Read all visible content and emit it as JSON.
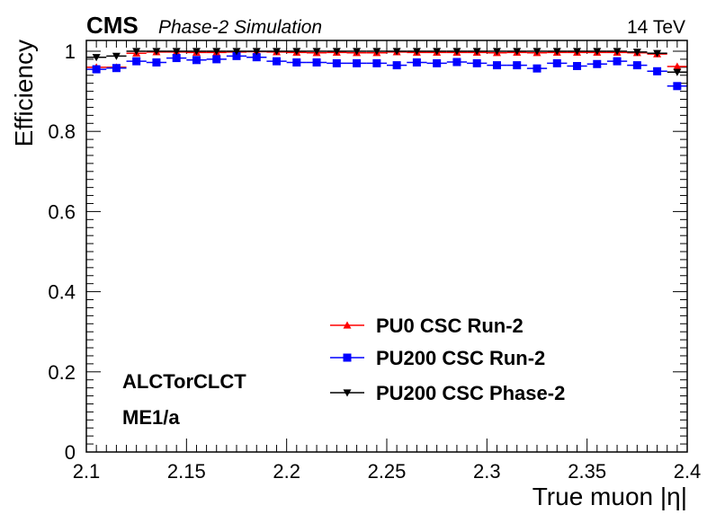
{
  "header": {
    "experiment": "CMS",
    "subtitle": "Phase-2 Simulation",
    "energy": "14 TeV"
  },
  "chart_data": {
    "type": "scatter",
    "xlabel": "True muon |η|",
    "ylabel": "Efficiency",
    "xlim": [
      2.1,
      2.4
    ],
    "ylim": [
      0,
      1.02
    ],
    "xticks": [
      2.1,
      2.15,
      2.2,
      2.25,
      2.3,
      2.35,
      2.4
    ],
    "xtick_labels": [
      "2.1",
      "2.15",
      "2.2",
      "2.25",
      "2.3",
      "2.35",
      "2.4"
    ],
    "yticks": [
      0,
      0.2,
      0.4,
      0.6,
      0.8,
      1
    ],
    "ytick_labels": [
      "0",
      "0.2",
      "0.4",
      "0.6",
      "0.8",
      "1"
    ],
    "bin_width": 0.01,
    "grid": false,
    "legend_position": "bottom-center",
    "annotations": [
      "ALCTorCLCT",
      "ME1/a"
    ],
    "series": [
      {
        "name": "PU0 CSC Run-2",
        "color": "#ff0000",
        "marker": "triangle-up",
        "x": [
          2.105,
          2.115,
          2.125,
          2.135,
          2.145,
          2.155,
          2.165,
          2.175,
          2.185,
          2.195,
          2.205,
          2.215,
          2.225,
          2.235,
          2.245,
          2.255,
          2.265,
          2.275,
          2.285,
          2.295,
          2.305,
          2.315,
          2.325,
          2.335,
          2.345,
          2.355,
          2.365,
          2.375,
          2.385,
          2.395
        ],
        "values": [
          0.96,
          0.96,
          0.995,
          0.998,
          0.998,
          0.997,
          0.997,
          0.998,
          0.999,
          0.998,
          0.997,
          0.996,
          0.997,
          0.996,
          0.996,
          0.998,
          0.997,
          0.997,
          0.997,
          0.997,
          0.996,
          0.997,
          0.996,
          0.997,
          0.997,
          0.997,
          0.997,
          0.996,
          0.993,
          0.962
        ]
      },
      {
        "name": "PU200 CSC Run-2",
        "color": "#0000ff",
        "marker": "square",
        "x": [
          2.105,
          2.115,
          2.125,
          2.135,
          2.145,
          2.155,
          2.165,
          2.175,
          2.185,
          2.195,
          2.205,
          2.215,
          2.225,
          2.235,
          2.245,
          2.255,
          2.265,
          2.275,
          2.285,
          2.295,
          2.305,
          2.315,
          2.325,
          2.335,
          2.345,
          2.355,
          2.365,
          2.375,
          2.385,
          2.395
        ],
        "values": [
          0.955,
          0.958,
          0.975,
          0.972,
          0.983,
          0.978,
          0.98,
          0.988,
          0.985,
          0.975,
          0.972,
          0.972,
          0.97,
          0.97,
          0.97,
          0.965,
          0.972,
          0.97,
          0.973,
          0.97,
          0.965,
          0.965,
          0.957,
          0.97,
          0.963,
          0.968,
          0.975,
          0.965,
          0.95,
          0.913
        ]
      },
      {
        "name": "PU200 CSC Phase-2",
        "color": "#000000",
        "marker": "triangle-down",
        "x": [
          2.105,
          2.115,
          2.125,
          2.135,
          2.145,
          2.155,
          2.165,
          2.175,
          2.185,
          2.195,
          2.205,
          2.215,
          2.225,
          2.235,
          2.245,
          2.255,
          2.265,
          2.275,
          2.285,
          2.295,
          2.305,
          2.315,
          2.325,
          2.335,
          2.345,
          2.355,
          2.365,
          2.375,
          2.385,
          2.395
        ],
        "values": [
          0.985,
          0.988,
          1.0,
          1.0,
          1.0,
          1.0,
          1.0,
          1.0,
          1.0,
          1.0,
          1.0,
          1.0,
          1.0,
          1.0,
          1.0,
          1.0,
          1.0,
          1.0,
          1.0,
          1.0,
          1.0,
          1.0,
          1.0,
          1.0,
          1.0,
          1.0,
          1.0,
          0.998,
          0.995,
          0.948
        ]
      }
    ]
  }
}
